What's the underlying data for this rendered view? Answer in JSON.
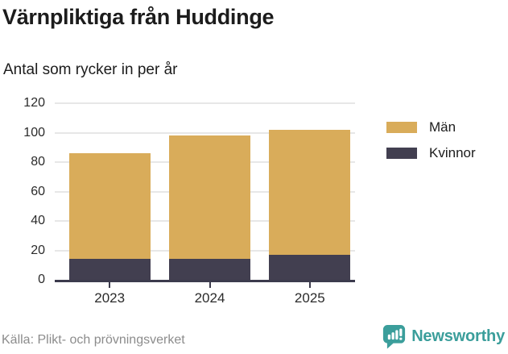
{
  "header": {
    "title": "Värnpliktiga från Huddinge",
    "subtitle": "Antal som rycker in per år"
  },
  "chart_data": {
    "type": "bar",
    "stacked": true,
    "title": "Värnpliktiga från Huddinge",
    "subtitle": "Antal som rycker in per år",
    "categories": [
      "2023",
      "2024",
      "2025"
    ],
    "series": [
      {
        "name": "Män",
        "color": "#d9ac5a",
        "values": [
          72,
          84,
          85
        ]
      },
      {
        "name": "Kvinnor",
        "color": "#423f50",
        "values": [
          14,
          14,
          17
        ]
      }
    ],
    "stack_order_bottom_to_top": [
      "Kvinnor",
      "Män"
    ],
    "totals": [
      86,
      98,
      102
    ],
    "xlabel": "",
    "ylabel": "",
    "ylim": [
      0,
      120
    ],
    "yticks": [
      0,
      20,
      40,
      60,
      80,
      100,
      120
    ],
    "grid": true,
    "legend_position": "right"
  },
  "colors": {
    "axis": "#3c3b4d",
    "gridline": "#e7e7e7",
    "text": "#1c1c1c",
    "tick_text": "#2b2b2b",
    "muted_text": "#8c8c8c",
    "brand_teal": "#3b9e9b"
  },
  "footer": {
    "source": "Källa: Plikt- och prövningsverket",
    "brand": "Newsworthy"
  }
}
